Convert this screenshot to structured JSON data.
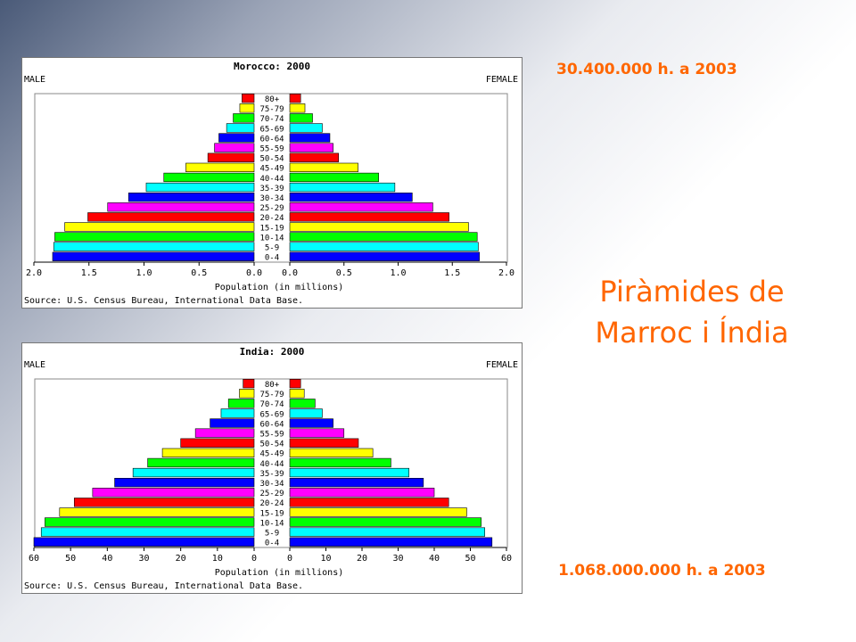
{
  "slide": {
    "title_line1": "Piràmides de",
    "title_line2": "Marroc i Índia",
    "morocco_population": "30.400.000 h. a 2003",
    "india_population": "1.068.000.000 h. a 2003"
  },
  "colors": {
    "accent": "#ff6600",
    "bands": [
      "#0000ff",
      "#00ffff",
      "#00ff00",
      "#ffff00",
      "#ff0000",
      "#ff00ff",
      "#0000ff",
      "#00ffff",
      "#00ff00",
      "#ffff00",
      "#ff0000",
      "#ff00ff",
      "#0000ff",
      "#00ffff",
      "#00ff00",
      "#ffff00",
      "#ff0000"
    ]
  },
  "chart_data": [
    {
      "type": "bar",
      "title": "Morocco: 2000",
      "left_label": "MALE",
      "right_label": "FEMALE",
      "xlabel": "Population (in millions)",
      "source": "Source: U.S. Census Bureau, International Data Base.",
      "categories": [
        "0-4",
        "5-9",
        "10-14",
        "15-19",
        "20-24",
        "25-29",
        "30-34",
        "35-39",
        "40-44",
        "45-49",
        "50-54",
        "55-59",
        "60-64",
        "65-69",
        "70-74",
        "75-79",
        "80+"
      ],
      "xlim": [
        0,
        2.0
      ],
      "ticks_left": [
        "2.0",
        "1.5",
        "1.0",
        "0.5",
        "0.0"
      ],
      "ticks_right": [
        "0.0",
        "0.5",
        "1.0",
        "1.5",
        "2.0"
      ],
      "series": [
        {
          "name": "MALE",
          "values": [
            1.83,
            1.82,
            1.81,
            1.72,
            1.51,
            1.33,
            1.14,
            0.98,
            0.82,
            0.62,
            0.42,
            0.36,
            0.32,
            0.25,
            0.19,
            0.13,
            0.11
          ]
        },
        {
          "name": "FEMALE",
          "values": [
            1.75,
            1.74,
            1.73,
            1.65,
            1.47,
            1.32,
            1.13,
            0.97,
            0.82,
            0.63,
            0.45,
            0.4,
            0.37,
            0.3,
            0.21,
            0.14,
            0.1
          ]
        }
      ]
    },
    {
      "type": "bar",
      "title": "India: 2000",
      "left_label": "MALE",
      "right_label": "FEMALE",
      "xlabel": "Population (in millions)",
      "source": "Source: U.S. Census Bureau, International Data Base.",
      "categories": [
        "0-4",
        "5-9",
        "10-14",
        "15-19",
        "20-24",
        "25-29",
        "30-34",
        "35-39",
        "40-44",
        "45-49",
        "50-54",
        "55-59",
        "60-64",
        "65-69",
        "70-74",
        "75-79",
        "80+"
      ],
      "xlim": [
        0,
        60
      ],
      "ticks_left": [
        "60",
        "50",
        "40",
        "30",
        "20",
        "10",
        "0"
      ],
      "ticks_right": [
        "0",
        "10",
        "20",
        "30",
        "40",
        "50",
        "60"
      ],
      "series": [
        {
          "name": "MALE",
          "values": [
            60,
            58,
            57,
            53,
            49,
            44,
            38,
            33,
            29,
            25,
            20,
            16,
            12,
            9,
            7,
            4,
            3
          ]
        },
        {
          "name": "FEMALE",
          "values": [
            56,
            54,
            53,
            49,
            44,
            40,
            37,
            33,
            28,
            23,
            19,
            15,
            12,
            9,
            7,
            4,
            3
          ]
        }
      ]
    }
  ]
}
